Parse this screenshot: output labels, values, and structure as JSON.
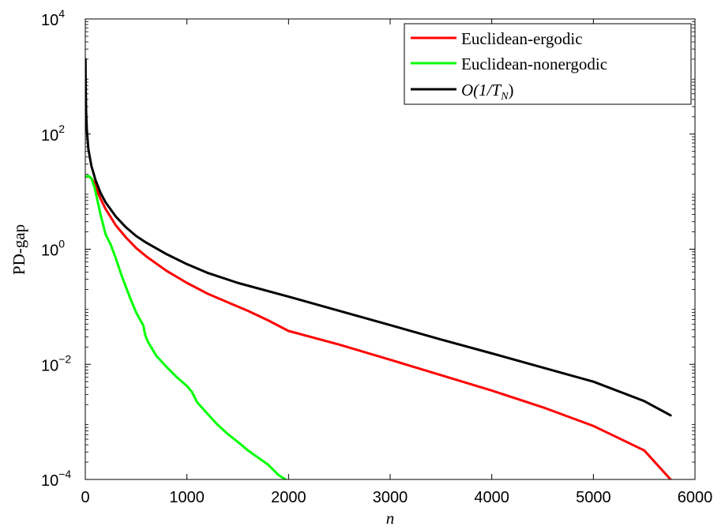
{
  "chart_data": {
    "type": "line",
    "xlabel": "n",
    "ylabel": "PD-gap",
    "xlim": [
      0,
      6000
    ],
    "ylim": [
      0.0001,
      10000
    ],
    "yscale": "log",
    "grid": false,
    "legend_position": "top-right",
    "x_ticks": [
      0,
      1000,
      2000,
      3000,
      4000,
      5000,
      6000
    ],
    "x_tick_labels": [
      "0",
      "1000",
      "2000",
      "3000",
      "4000",
      "5000",
      "6000"
    ],
    "y_ticks": [
      {
        "value": 0.0001,
        "base": "10",
        "exp": "−4"
      },
      {
        "value": 0.01,
        "base": "10",
        "exp": "−2"
      },
      {
        "value": 1,
        "base": "10",
        "exp": "0"
      },
      {
        "value": 100,
        "base": "10",
        "exp": "2"
      },
      {
        "value": 10000,
        "base": "10",
        "exp": "4"
      }
    ],
    "series": [
      {
        "name": "Euclidean-ergodic",
        "color": "#ff0000",
        "points": [
          [
            1,
            18
          ],
          [
            30,
            18.5
          ],
          [
            60,
            17
          ],
          [
            90,
            14
          ],
          [
            120,
            10
          ],
          [
            150,
            7.5
          ],
          [
            200,
            5
          ],
          [
            300,
            2.6
          ],
          [
            400,
            1.6
          ],
          [
            500,
            1.05
          ],
          [
            600,
            0.75
          ],
          [
            800,
            0.42
          ],
          [
            1000,
            0.26
          ],
          [
            1200,
            0.17
          ],
          [
            1400,
            0.12
          ],
          [
            1600,
            0.085
          ],
          [
            1800,
            0.058
          ],
          [
            2000,
            0.038
          ],
          [
            2500,
            0.022
          ],
          [
            3000,
            0.012
          ],
          [
            3500,
            0.0065
          ],
          [
            4000,
            0.0035
          ],
          [
            4500,
            0.0018
          ],
          [
            5000,
            0.00085
          ],
          [
            5500,
            0.00032
          ],
          [
            5760,
            0.0001
          ]
        ]
      },
      {
        "name": "Euclidean-nonergodic",
        "color": "#00ff00",
        "points": [
          [
            1,
            18
          ],
          [
            30,
            18.8
          ],
          [
            60,
            17
          ],
          [
            90,
            12
          ],
          [
            120,
            7
          ],
          [
            150,
            4
          ],
          [
            200,
            1.8
          ],
          [
            250,
            1.2
          ],
          [
            300,
            0.7
          ],
          [
            350,
            0.38
          ],
          [
            400,
            0.22
          ],
          [
            450,
            0.13
          ],
          [
            500,
            0.08
          ],
          [
            550,
            0.055
          ],
          [
            570,
            0.048
          ],
          [
            590,
            0.032
          ],
          [
            620,
            0.024
          ],
          [
            700,
            0.014
          ],
          [
            800,
            0.009
          ],
          [
            900,
            0.006
          ],
          [
            1000,
            0.0042
          ],
          [
            1050,
            0.0033
          ],
          [
            1100,
            0.0022
          ],
          [
            1200,
            0.0014
          ],
          [
            1300,
            0.0009
          ],
          [
            1400,
            0.00062
          ],
          [
            1500,
            0.00045
          ],
          [
            1600,
            0.00032
          ],
          [
            1700,
            0.00024
          ],
          [
            1800,
            0.00018
          ],
          [
            1900,
            0.00012
          ],
          [
            1970,
            0.0001
          ]
        ]
      },
      {
        "name": "O(1/T_N)",
        "color": "#000000",
        "points": [
          [
            2,
            2000
          ],
          [
            4,
            700
          ],
          [
            8,
            250
          ],
          [
            15,
            120
          ],
          [
            30,
            55
          ],
          [
            60,
            28
          ],
          [
            100,
            16
          ],
          [
            150,
            9.5
          ],
          [
            200,
            6.5
          ],
          [
            300,
            3.7
          ],
          [
            400,
            2.4
          ],
          [
            500,
            1.7
          ],
          [
            600,
            1.3
          ],
          [
            800,
            0.82
          ],
          [
            1000,
            0.55
          ],
          [
            1200,
            0.39
          ],
          [
            1500,
            0.26
          ],
          [
            2000,
            0.15
          ],
          [
            2500,
            0.085
          ],
          [
            3000,
            0.048
          ],
          [
            3500,
            0.027
          ],
          [
            4000,
            0.0155
          ],
          [
            4500,
            0.0088
          ],
          [
            5000,
            0.005
          ],
          [
            5500,
            0.0023
          ],
          [
            5760,
            0.0013
          ]
        ]
      }
    ]
  },
  "legend": {
    "entries": [
      {
        "text": "Euclidean-ergodic",
        "color": "#ff0000"
      },
      {
        "text": "Euclidean-nonergodic",
        "color": "#00ff00"
      },
      {
        "main": "O(1/T",
        "sub": "N",
        "close": ")",
        "color": "#000000"
      }
    ]
  }
}
